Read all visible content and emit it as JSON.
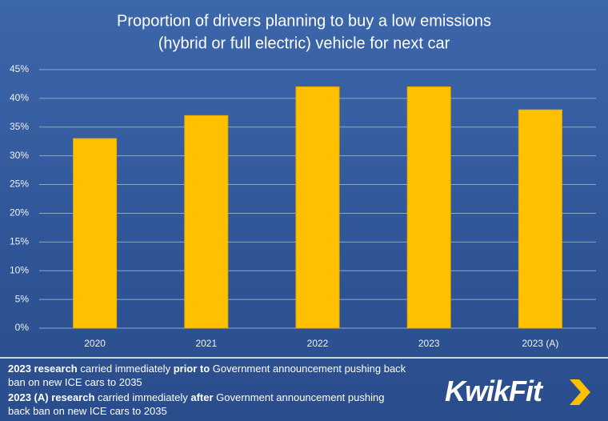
{
  "chart_data": {
    "type": "bar",
    "title_lines": [
      "Proportion of drivers planning to buy a low emissions",
      "(hybrid or full electric) vehicle for next car"
    ],
    "categories": [
      "2020",
      "2021",
      "2022",
      "2023",
      "2023 (A)"
    ],
    "values": [
      33,
      37,
      42,
      42,
      38
    ],
    "color": "#ffc000",
    "ylim": [
      0,
      45
    ],
    "yticks": [
      {
        "value": 0,
        "label": "0%"
      },
      {
        "value": 5,
        "label": "5%"
      },
      {
        "value": 10,
        "label": "10%"
      },
      {
        "value": 15,
        "label": "15%"
      },
      {
        "value": 20,
        "label": "20%"
      },
      {
        "value": 25,
        "label": "25%"
      },
      {
        "value": 30,
        "label": "30%"
      },
      {
        "value": 35,
        "label": "35%"
      },
      {
        "value": 40,
        "label": "40%"
      },
      {
        "value": 45,
        "label": "45%"
      }
    ],
    "grid": true
  },
  "footnotes": [
    {
      "parts": [
        {
          "text": "2023 research",
          "bold": true
        },
        {
          "text": " carried immediately ",
          "bold": false
        },
        {
          "text": "prior to",
          "bold": true
        },
        {
          "text": " Government announcement pushing back ban on new ICE cars to 2035",
          "bold": false
        }
      ]
    },
    {
      "parts": [
        {
          "text": "2023 (A) research",
          "bold": true
        },
        {
          "text": " carried immediately ",
          "bold": false
        },
        {
          "text": "after",
          "bold": true
        },
        {
          "text": " Government announcement pushing back ban on new ICE cars to 2035",
          "bold": false
        }
      ]
    }
  ],
  "logo": "KwikFit"
}
